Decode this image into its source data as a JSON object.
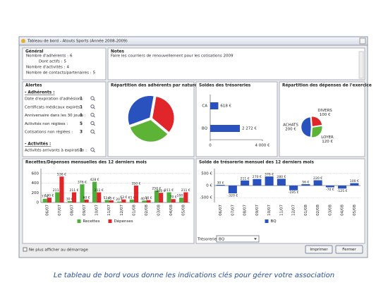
{
  "window": {
    "title": "Tableau de bord - Atouts Sports (Année 2008-2009)"
  },
  "general": {
    "title": "Général",
    "items": [
      {
        "label": "Nombre d'adhérents :",
        "value": 6
      },
      {
        "label": "Dont actifs :",
        "value": 5
      },
      {
        "label": "Nombre d'activités :",
        "value": 4
      },
      {
        "label": "Nombre de contacts/partenaires :",
        "value": 5
      }
    ]
  },
  "notes": {
    "title": "Notes",
    "text": "Faire les courriers de renouvellement pour les cotisations 2009"
  },
  "alerts": {
    "title": "Alertes",
    "sections": [
      {
        "heading": "- Adhérents :",
        "items": [
          {
            "label": "Date d'expiration d'adhésion :",
            "value": 1
          },
          {
            "label": "Certificats médicaux expirés :",
            "value": 1
          },
          {
            "label": "Anniversaire dans les 30 jours :",
            "value": 1
          },
          {
            "label": "Activités non réglées :",
            "value": 5
          },
          {
            "label": "Cotisations non réglées :",
            "value": 3
          }
        ]
      },
      {
        "heading": "- Activités :",
        "items": [
          {
            "label": "Activités arrivants à expiration :",
            "value": 1
          }
        ]
      }
    ]
  },
  "charts": [
    {
      "type": "pie",
      "title": "Répartition des adhérents par nature",
      "values": [
        2,
        2,
        2
      ],
      "colors": [
        "#e0262a",
        "#5cb335",
        "#2a52be"
      ]
    },
    {
      "type": "hbar",
      "title": "Soldes des trésoreries",
      "categories": [
        "CA",
        "BQ"
      ],
      "values": [
        618,
        2272
      ],
      "value_labels": [
        "618 €",
        "2 272 €"
      ],
      "color": "#2a52be",
      "xlim": [
        0,
        4000
      ],
      "xticks": [
        0,
        {
          "value": 4000,
          "label": "4 000 €"
        }
      ]
    },
    {
      "type": "pie",
      "title": "Répartition des dépenses de l'exercice",
      "categories": [
        "ACHATS",
        "DIVERS",
        "LOYER"
      ],
      "values": [
        200,
        100,
        120
      ],
      "value_labels": [
        "200 €",
        "100 €",
        "120 €"
      ],
      "colors": [
        "#2a52be",
        "#e0262a",
        "#5cb335"
      ]
    },
    {
      "type": "bar",
      "title": "Recettes/Dépenses mensuelles des 12 derniers mois",
      "categories": [
        "06/07",
        "07/07",
        "08/07",
        "09/07",
        "10/07",
        "11/07",
        "12/07",
        "01/08",
        "02/08",
        "03/08",
        "04/08",
        "05/08"
      ],
      "series": [
        {
          "name": "Recettes",
          "color": "#4caf3a",
          "values": [
            77,
            211,
            30,
            376,
            428,
            53,
            20,
            61,
            40,
            250,
            211,
            100
          ],
          "value_labels": [
            "77 €",
            "211 €",
            "30 €",
            "376 €",
            "428 €",
            "53 €",
            "20 €",
            "61 €",
            "40 €",
            "250 €",
            "211 €",
            "100 €"
          ]
        },
        {
          "name": "Dépenses",
          "color": "#e0262a",
          "values": [
            100,
            536,
            211,
            60,
            211,
            45,
            63,
            350,
            50,
            200,
            70,
            211
          ],
          "value_labels": [
            "100 €",
            "536 €",
            "211 €",
            "60 €",
            "211 €",
            "45 €",
            "63 €",
            "350 €",
            "50 €",
            "200 €",
            "70 €",
            "211 €"
          ]
        }
      ],
      "ylim": [
        0,
        700
      ],
      "yticks": [
        0,
        200,
        400,
        600
      ],
      "grid": true
    },
    {
      "type": "bar",
      "title": "Solde de trésorerie mensuel des 12 derniers mois",
      "categories": [
        "06/07",
        "07/07",
        "08/07",
        "09/07",
        "10/07",
        "11/07",
        "12/07",
        "01/08",
        "02/08",
        "03/08",
        "04/08",
        "05/08"
      ],
      "series": [
        {
          "name": "BQ",
          "color": "#2a52be",
          "values": [
            30,
            -320,
            211,
            270,
            376,
            280,
            -195,
            56,
            220,
            -70,
            -125,
            100
          ],
          "value_labels": [
            "30 €",
            "-320 €",
            "211 €",
            "270 €",
            "376 €",
            "280 €",
            "-195 €",
            "56 €",
            "220 €",
            "-70 €",
            "-125 €",
            "100 €"
          ]
        }
      ],
      "ylim": [
        -700,
        700
      ],
      "yticks": [
        {
          "value": -500,
          "label": "-500 €"
        },
        {
          "value": 0,
          "label": "0 €"
        },
        {
          "value": 500,
          "label": "500 €"
        }
      ],
      "grid": true
    }
  ],
  "treasury": {
    "label": "Trésorerie :",
    "selected": "BQ"
  },
  "footer": {
    "checkbox": "Ne plus afficher au démarrage",
    "buttons": [
      "Imprimer",
      "Fermer"
    ]
  },
  "caption": "Le tableau de bord vous donne les indications clés pour gérer votre association"
}
